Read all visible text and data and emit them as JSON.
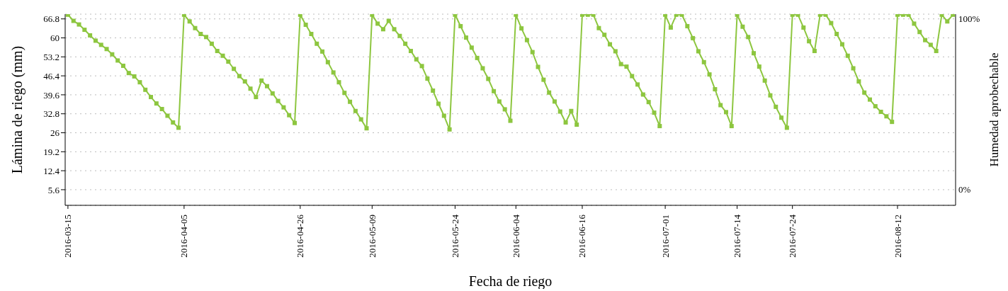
{
  "chart_data": {
    "type": "line",
    "xlabel": "Fecha de riego",
    "ylabel": "Lámina de riego (mm)",
    "y2label": "Humedad aprobechable",
    "xlim": [
      "2016-03-14T12:00",
      "2016-08-22T12:00"
    ],
    "xticks": [
      "2016-03-15",
      "2016-04-05",
      "2016-04-26",
      "2016-05-09",
      "2016-05-24",
      "2016-06-04",
      "2016-06-16",
      "2016-07-01",
      "2016-07-14",
      "2016-07-24",
      "2016-08-12"
    ],
    "ylim": [
      0,
      68.5
    ],
    "yticks": [
      5.6,
      12.4,
      19.2,
      26,
      32.8,
      39.6,
      46.4,
      53.2,
      60,
      66.8
    ],
    "y2lim": [
      -9.2,
      102.8
    ],
    "y2ticks": [
      {
        "value": 0,
        "label": "0%"
      },
      {
        "value": 100,
        "label": "100%"
      }
    ],
    "grid": "y",
    "marker": "square",
    "line_style": "solid",
    "x": [
      "2016-03-15",
      "2016-03-16",
      "2016-03-17",
      "2016-03-18",
      "2016-03-19",
      "2016-03-20",
      "2016-03-21",
      "2016-03-22",
      "2016-03-23",
      "2016-03-24",
      "2016-03-25",
      "2016-03-26",
      "2016-03-27",
      "2016-03-28",
      "2016-03-29",
      "2016-03-30",
      "2016-03-31",
      "2016-04-01",
      "2016-04-02",
      "2016-04-03",
      "2016-04-04",
      "2016-04-05",
      "2016-04-06",
      "2016-04-07",
      "2016-04-08",
      "2016-04-09",
      "2016-04-10",
      "2016-04-11",
      "2016-04-12",
      "2016-04-13",
      "2016-04-14",
      "2016-04-15",
      "2016-04-16",
      "2016-04-17",
      "2016-04-18",
      "2016-04-19",
      "2016-04-20",
      "2016-04-21",
      "2016-04-22",
      "2016-04-23",
      "2016-04-24",
      "2016-04-25",
      "2016-04-26",
      "2016-04-27",
      "2016-04-28",
      "2016-04-29",
      "2016-04-30",
      "2016-05-01",
      "2016-05-02",
      "2016-05-03",
      "2016-05-04",
      "2016-05-05",
      "2016-05-06",
      "2016-05-07",
      "2016-05-08",
      "2016-05-09",
      "2016-05-10",
      "2016-05-11",
      "2016-05-12",
      "2016-05-13",
      "2016-05-14",
      "2016-05-15",
      "2016-05-16",
      "2016-05-17",
      "2016-05-18",
      "2016-05-19",
      "2016-05-20",
      "2016-05-21",
      "2016-05-22",
      "2016-05-23",
      "2016-05-24",
      "2016-05-25",
      "2016-05-26",
      "2016-05-27",
      "2016-05-28",
      "2016-05-29",
      "2016-05-30",
      "2016-05-31",
      "2016-06-01",
      "2016-06-02",
      "2016-06-03",
      "2016-06-04",
      "2016-06-05",
      "2016-06-06",
      "2016-06-07",
      "2016-06-08",
      "2016-06-09",
      "2016-06-10",
      "2016-06-11",
      "2016-06-12",
      "2016-06-13",
      "2016-06-14",
      "2016-06-15",
      "2016-06-16",
      "2016-06-17",
      "2016-06-18",
      "2016-06-19",
      "2016-06-20",
      "2016-06-21",
      "2016-06-22",
      "2016-06-23",
      "2016-06-24",
      "2016-06-25",
      "2016-06-26",
      "2016-06-27",
      "2016-06-28",
      "2016-06-29",
      "2016-06-30",
      "2016-07-01",
      "2016-07-02",
      "2016-07-03",
      "2016-07-04",
      "2016-07-05",
      "2016-07-06",
      "2016-07-07",
      "2016-07-08",
      "2016-07-09",
      "2016-07-10",
      "2016-07-11",
      "2016-07-12",
      "2016-07-13",
      "2016-07-14",
      "2016-07-15",
      "2016-07-16",
      "2016-07-17",
      "2016-07-18",
      "2016-07-19",
      "2016-07-20",
      "2016-07-21",
      "2016-07-22",
      "2016-07-23",
      "2016-07-24",
      "2016-07-25",
      "2016-07-26",
      "2016-07-27",
      "2016-07-28",
      "2016-07-29",
      "2016-07-30",
      "2016-07-31",
      "2016-08-01",
      "2016-08-02",
      "2016-08-03",
      "2016-08-04",
      "2016-08-05",
      "2016-08-06",
      "2016-08-07",
      "2016-08-08",
      "2016-08-09",
      "2016-08-10",
      "2016-08-11",
      "2016-08-12",
      "2016-08-13",
      "2016-08-14",
      "2016-08-15",
      "2016-08-16",
      "2016-08-17",
      "2016-08-18",
      "2016-08-19",
      "2016-08-20",
      "2016-08-21",
      "2016-08-22"
    ],
    "series": [
      {
        "color": "#8dc63f",
        "values": [
          68.3,
          66.1,
          64.8,
          62.9,
          60.9,
          59.0,
          57.5,
          56.0,
          54.1,
          51.9,
          50.0,
          47.4,
          46.2,
          44.1,
          41.4,
          38.8,
          36.5,
          34.5,
          32.1,
          29.7,
          27.8,
          68.3,
          65.9,
          63.5,
          61.4,
          60.3,
          57.9,
          55.3,
          53.6,
          51.5,
          48.9,
          46.3,
          44.4,
          41.8,
          38.8,
          44.7,
          42.7,
          40.1,
          37.4,
          35.1,
          32.3,
          29.5,
          68.3,
          64.7,
          61.4,
          57.9,
          55.1,
          51.3,
          47.6,
          44.1,
          40.3,
          37.1,
          33.8,
          30.8,
          27.6,
          68.3,
          65.1,
          63.1,
          66.1,
          63.1,
          60.7,
          57.9,
          55.3,
          52.3,
          49.9,
          45.4,
          41.1,
          36.4,
          32.1,
          27.2,
          68.3,
          64.2,
          60.1,
          56.5,
          52.8,
          49.1,
          45.3,
          40.9,
          37.2,
          34.4,
          30.3,
          68.3,
          63.4,
          59.2,
          54.9,
          49.6,
          45.0,
          40.4,
          37.2,
          33.6,
          29.7,
          33.8,
          28.9,
          68.3,
          68.3,
          68.3,
          63.5,
          61.1,
          57.7,
          55.2,
          50.6,
          49.7,
          46.3,
          43.3,
          39.7,
          37.0,
          33.2,
          28.4,
          68.3,
          63.7,
          68.3,
          68.3,
          64.2,
          59.9,
          55.2,
          51.3,
          46.9,
          41.6,
          35.9,
          33.4,
          28.4,
          68.3,
          64.0,
          60.3,
          54.5,
          49.7,
          44.7,
          39.4,
          35.3,
          31.4,
          27.8,
          68.3,
          68.3,
          63.7,
          58.8,
          55.3,
          68.3,
          68.3,
          65.3,
          61.4,
          57.7,
          53.6,
          49.1,
          44.4,
          40.4,
          37.9,
          35.5,
          33.5,
          31.9,
          29.9,
          68.3,
          68.3,
          68.3,
          65.1,
          62.1,
          59.2,
          57.5,
          55.3,
          68.3,
          65.9,
          68.3
        ]
      }
    ]
  }
}
